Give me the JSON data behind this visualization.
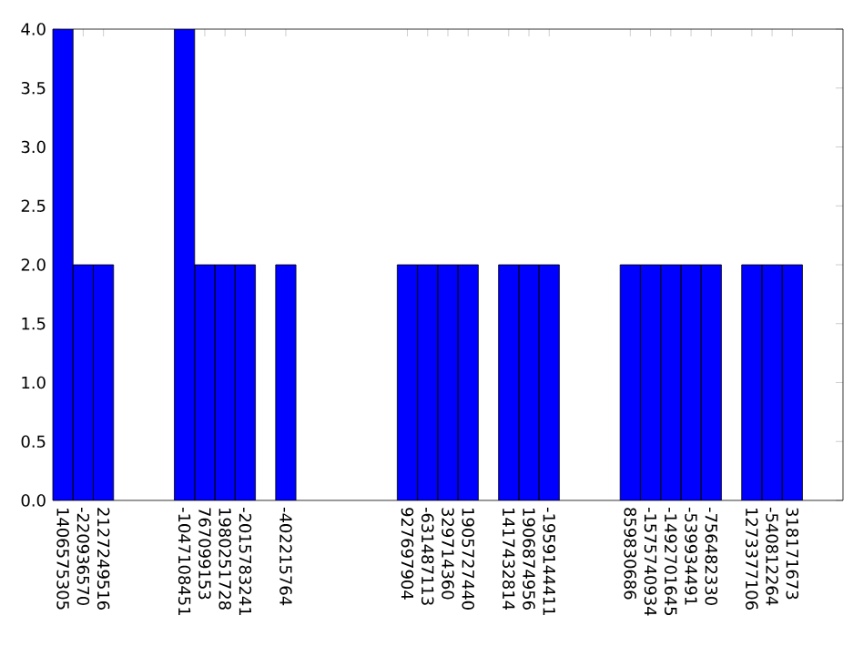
{
  "chart_data": {
    "type": "bar",
    "categories": [
      "1406575305",
      "-220936570",
      "2127249516",
      null,
      null,
      null,
      "-1047108451",
      "767099153",
      "1980251728",
      "-2015783241",
      null,
      "-402215764",
      null,
      null,
      null,
      null,
      null,
      "927697904",
      "-631487113",
      "329714360",
      "1905727440",
      null,
      "1417432814",
      "1906874956",
      "-1959144411",
      null,
      null,
      null,
      "859830686",
      "-1575740934",
      "-1492701645",
      "-539934491",
      "-756482330",
      null,
      "1273377106",
      "-540812264",
      "318171673",
      null,
      null
    ],
    "values": [
      4,
      2,
      2,
      null,
      null,
      null,
      4,
      2,
      2,
      2,
      null,
      2,
      null,
      null,
      null,
      null,
      null,
      2,
      2,
      2,
      2,
      null,
      2,
      2,
      2,
      null,
      null,
      null,
      2,
      2,
      2,
      2,
      2,
      null,
      2,
      2,
      2,
      null,
      null
    ],
    "color": "#0000ff",
    "ylim": [
      0,
      4
    ],
    "yticks": [
      {
        "value": 0,
        "label": "0.0"
      },
      {
        "value": 0.5,
        "label": "0.5"
      },
      {
        "value": 1,
        "label": "1.0"
      },
      {
        "value": 1.5,
        "label": "1.5"
      },
      {
        "value": 2,
        "label": "2.0"
      },
      {
        "value": 2.5,
        "label": "2.5"
      },
      {
        "value": 3,
        "label": "3.0"
      },
      {
        "value": 3.5,
        "label": "3.5"
      },
      {
        "value": 4,
        "label": "4.0"
      }
    ],
    "grid": false
  }
}
